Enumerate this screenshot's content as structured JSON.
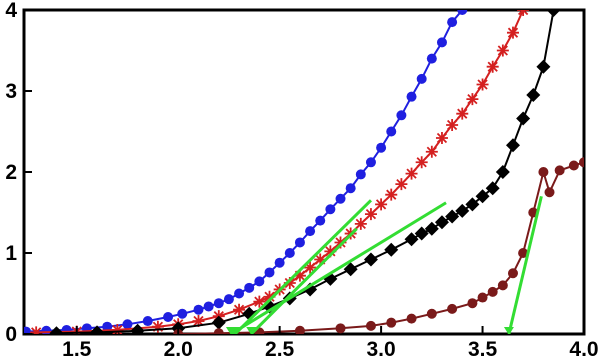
{
  "chart_data": {
    "type": "line",
    "title": "",
    "xlabel": "",
    "ylabel": "",
    "xlim": [
      1.24,
      4.0
    ],
    "ylim": [
      0,
      4
    ],
    "x_ticks": [
      1.5,
      2.0,
      2.5,
      3.0,
      3.5,
      4.0
    ],
    "x_tick_labels": [
      "1.5",
      "2.0",
      "2.5",
      "3.0",
      "3.5",
      "4.0"
    ],
    "y_ticks": [
      0,
      1,
      2,
      3,
      4
    ],
    "y_tick_labels": [
      "0",
      "1",
      "2",
      "3",
      "4"
    ],
    "grid": false,
    "legend": "none",
    "series": [
      {
        "color": "#1f1fe0",
        "marker": "circle",
        "x": [
          1.25,
          1.35,
          1.45,
          1.55,
          1.65,
          1.75,
          1.85,
          1.95,
          2.02,
          2.1,
          2.15,
          2.2,
          2.25,
          2.3,
          2.35,
          2.4,
          2.45,
          2.5,
          2.55,
          2.6,
          2.65,
          2.7,
          2.75,
          2.8,
          2.85,
          2.9,
          2.95,
          3.0,
          3.05,
          3.1,
          3.15,
          3.2,
          3.25,
          3.3,
          3.35,
          3.4
        ],
        "y": [
          0.03,
          0.04,
          0.05,
          0.07,
          0.09,
          0.12,
          0.16,
          0.21,
          0.25,
          0.3,
          0.34,
          0.38,
          0.43,
          0.5,
          0.57,
          0.65,
          0.76,
          0.88,
          1.0,
          1.13,
          1.27,
          1.4,
          1.54,
          1.67,
          1.8,
          1.97,
          2.12,
          2.3,
          2.5,
          2.7,
          2.93,
          3.15,
          3.4,
          3.6,
          3.85,
          4.0
        ]
      },
      {
        "color": "#d42020",
        "marker": "star",
        "x": [
          1.3,
          1.5,
          1.7,
          1.9,
          2.0,
          2.1,
          2.2,
          2.3,
          2.4,
          2.45,
          2.5,
          2.55,
          2.6,
          2.65,
          2.7,
          2.75,
          2.8,
          2.85,
          2.9,
          2.95,
          3.0,
          3.05,
          3.1,
          3.15,
          3.2,
          3.25,
          3.3,
          3.35,
          3.4,
          3.45,
          3.5,
          3.55,
          3.6,
          3.65,
          3.7
        ],
        "y": [
          0.02,
          0.03,
          0.05,
          0.09,
          0.12,
          0.16,
          0.22,
          0.3,
          0.4,
          0.46,
          0.55,
          0.63,
          0.72,
          0.82,
          0.92,
          1.02,
          1.13,
          1.24,
          1.36,
          1.48,
          1.6,
          1.72,
          1.85,
          1.98,
          2.12,
          2.25,
          2.42,
          2.58,
          2.72,
          2.9,
          3.08,
          3.3,
          3.5,
          3.72,
          4.0
        ]
      },
      {
        "color": "#000000",
        "marker": "diamond",
        "x": [
          1.4,
          1.6,
          1.8,
          2.0,
          2.2,
          2.35,
          2.45,
          2.55,
          2.65,
          2.75,
          2.85,
          2.95,
          3.05,
          3.15,
          3.2,
          3.25,
          3.3,
          3.35,
          3.4,
          3.45,
          3.5,
          3.55,
          3.6,
          3.65,
          3.7,
          3.75,
          3.8,
          3.85
        ],
        "y": [
          0.01,
          0.02,
          0.04,
          0.07,
          0.14,
          0.25,
          0.34,
          0.44,
          0.55,
          0.68,
          0.8,
          0.92,
          1.04,
          1.17,
          1.24,
          1.3,
          1.38,
          1.45,
          1.52,
          1.6,
          1.7,
          1.8,
          2.0,
          2.33,
          2.66,
          2.95,
          3.3,
          4.0
        ]
      },
      {
        "color": "#7a1a1a",
        "marker": "circle",
        "x": [
          2.0,
          2.2,
          2.4,
          2.6,
          2.8,
          2.95,
          3.05,
          3.15,
          3.25,
          3.35,
          3.45,
          3.5,
          3.55,
          3.6,
          3.65,
          3.7,
          3.75,
          3.8,
          3.83,
          3.88,
          3.95,
          4.0
        ],
        "y": [
          0.0,
          0.01,
          0.02,
          0.04,
          0.07,
          0.1,
          0.14,
          0.19,
          0.25,
          0.31,
          0.38,
          0.45,
          0.52,
          0.6,
          0.75,
          1.0,
          1.5,
          2.0,
          1.75,
          2.02,
          2.08,
          2.12
        ]
      }
    ],
    "fit_lines": [
      {
        "color": "#33dd33",
        "x": [
          2.28,
          2.95
        ],
        "y": [
          0.0,
          1.65
        ]
      },
      {
        "color": "#33dd33",
        "x": [
          2.36,
          2.88
        ],
        "y": [
          0.0,
          1.3
        ]
      },
      {
        "color": "#33dd33",
        "x": [
          2.26,
          3.32
        ],
        "y": [
          0.0,
          1.62
        ]
      },
      {
        "color": "#33dd33",
        "x": [
          3.63,
          3.79
        ],
        "y": [
          0.0,
          1.7
        ]
      }
    ]
  }
}
